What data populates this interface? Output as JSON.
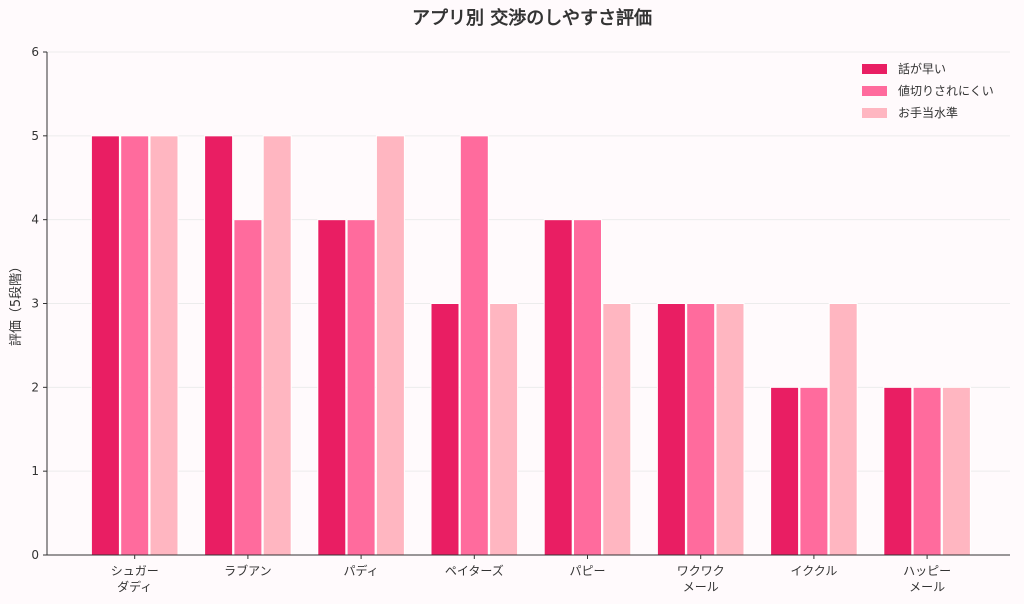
{
  "chart_data": {
    "type": "bar",
    "title": "アプリ別 交渉のしやすさ評価",
    "xlabel": "",
    "ylabel": "評価（5段階）",
    "ylim": [
      0,
      6
    ],
    "yticks": [
      "0",
      "1",
      "2",
      "3",
      "4",
      "5",
      "6"
    ],
    "grid": true,
    "legend_position": "top-right",
    "categories": [
      {
        "lines": [
          "シュガー",
          "ダディ"
        ]
      },
      {
        "lines": [
          "ラブアン"
        ]
      },
      {
        "lines": [
          "パディ"
        ]
      },
      {
        "lines": [
          "ペイターズ"
        ]
      },
      {
        "lines": [
          "パピー"
        ]
      },
      {
        "lines": [
          "ワクワク",
          "メール"
        ]
      },
      {
        "lines": [
          "イククル"
        ]
      },
      {
        "lines": [
          "ハッピー",
          "メール"
        ]
      }
    ],
    "series": [
      {
        "name": "話が早い",
        "color": "#e91e63",
        "values": [
          5,
          5,
          4,
          3,
          4,
          3,
          2,
          2
        ]
      },
      {
        "name": "値切りされにくい",
        "color": "#ff6b9d",
        "values": [
          5,
          4,
          4,
          5,
          4,
          3,
          2,
          2
        ]
      },
      {
        "name": "お手当水準",
        "color": "#ffb6c1",
        "values": [
          5,
          5,
          5,
          3,
          3,
          3,
          3,
          2
        ]
      }
    ]
  }
}
